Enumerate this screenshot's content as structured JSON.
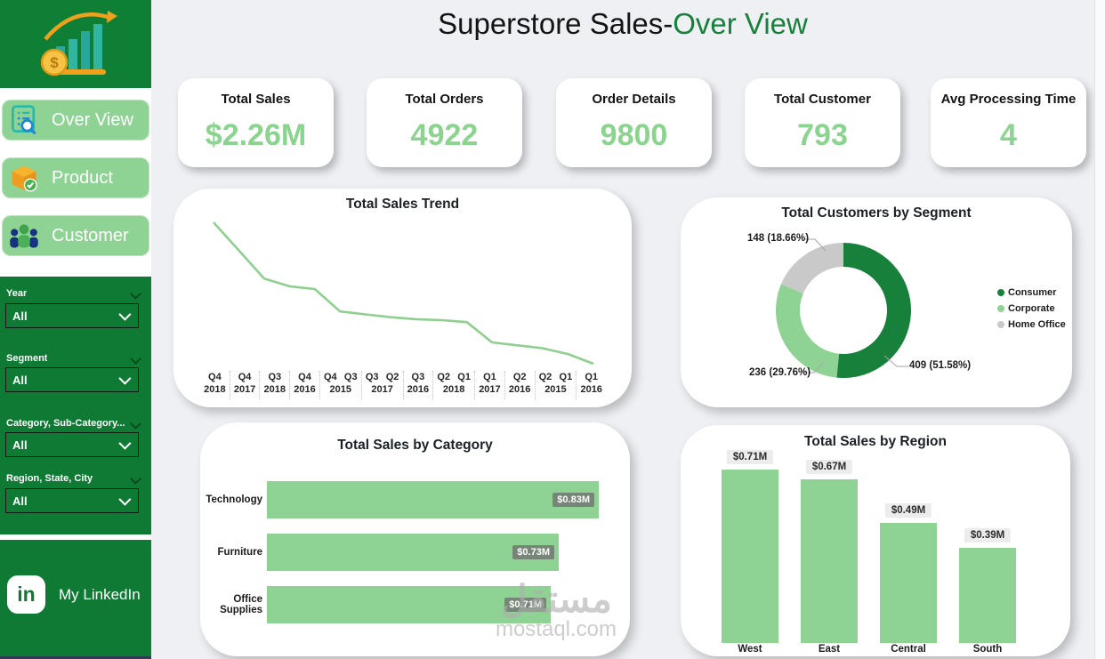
{
  "header": {
    "title_prefix": "Superstore Sales-",
    "title_highlight": "Over View"
  },
  "sidebar": {
    "nav": [
      {
        "label": "Over View"
      },
      {
        "label": "Product"
      },
      {
        "label": "Customer"
      }
    ],
    "filters": [
      {
        "label": "Year",
        "value": "All"
      },
      {
        "label": "Segment",
        "value": "All"
      },
      {
        "label": "Category, Sub-Category...",
        "value": "All"
      },
      {
        "label": "Region, State, City",
        "value": "All"
      }
    ],
    "linkedin": {
      "icon_text": "in",
      "label": "My LinkedIn"
    }
  },
  "kpis": [
    {
      "label": "Total Sales",
      "value": "$2.26M"
    },
    {
      "label": "Total Orders",
      "value": "4922"
    },
    {
      "label": "Order Details",
      "value": "9800"
    },
    {
      "label": "Total Customer",
      "value": "793"
    },
    {
      "label": "Avg Processing Time",
      "value": "4"
    }
  ],
  "watermark": {
    "arabic": "مستقل",
    "latin": "mostaql.com"
  },
  "colors": {
    "sidebar_green": "#0E7A33",
    "light_green": "#8FD394",
    "dark_green": "#17813B",
    "kpi_value_green": "#8BD48F",
    "trend_line": "#8FCF8F",
    "donut_gray": "#C9C9C9",
    "navy_strip": "#2E3B55",
    "background": "#EEF0F4"
  },
  "chart_data": [
    {
      "id": "total_sales_trend",
      "type": "line",
      "title": "Total Sales Trend",
      "x": [
        "Q4 2018",
        "Q4 2017",
        "Q3 2018",
        "Q4 2016",
        "Q4 2015",
        "Q3 2015",
        "Q3 2017",
        "Q2 2017",
        "Q3 2016",
        "Q2 2018",
        "Q1 2018",
        "Q1 2017",
        "Q2 2016",
        "Q2 2015",
        "Q1 2015",
        "Q1 2016"
      ],
      "values_musd": [
        0.222,
        0.193,
        0.164,
        0.156,
        0.153,
        0.13,
        0.127,
        0.124,
        0.122,
        0.121,
        0.119,
        0.098,
        0.095,
        0.092,
        0.086,
        0.076
      ],
      "axis_groups": [
        {
          "quarters": [
            "Q4"
          ],
          "year": "2018"
        },
        {
          "quarters": [
            "Q4"
          ],
          "year": "2017"
        },
        {
          "quarters": [
            "Q3"
          ],
          "year": "2018"
        },
        {
          "quarters": [
            "Q4"
          ],
          "year": "2016"
        },
        {
          "quarters": [
            "Q4",
            "Q3"
          ],
          "year": "2015"
        },
        {
          "quarters": [
            "Q3",
            "Q2"
          ],
          "year": "2017"
        },
        {
          "quarters": [
            "Q3"
          ],
          "year": "2016"
        },
        {
          "quarters": [
            "Q2",
            "Q1"
          ],
          "year": "2018"
        },
        {
          "quarters": [
            "Q1"
          ],
          "year": "2017"
        },
        {
          "quarters": [
            "Q2"
          ],
          "year": "2016"
        },
        {
          "quarters": [
            "Q2",
            "Q1"
          ],
          "year": "2015"
        },
        {
          "quarters": [
            "Q1"
          ],
          "year": "2016"
        }
      ]
    },
    {
      "id": "total_customers_by_segment",
      "type": "donut",
      "title": "Total Customers by Segment",
      "slices": [
        {
          "label": "Consumer",
          "value": 409,
          "pct": 51.58,
          "callout": "409 (51.58%)",
          "color": "#17813B"
        },
        {
          "label": "Corporate",
          "value": 236,
          "pct": 29.76,
          "callout": "236 (29.76%)",
          "color": "#8FD394"
        },
        {
          "label": "Home Office",
          "value": 148,
          "pct": 18.66,
          "callout": "148 (18.66%)",
          "color": "#C9C9C9"
        }
      ],
      "legend_position": "right"
    },
    {
      "id": "total_sales_by_category",
      "type": "bar",
      "title": "Total Sales by Category",
      "categories": [
        "Technology",
        "Furniture",
        "Office Supplies"
      ],
      "values_musd": [
        0.83,
        0.73,
        0.71
      ],
      "labels": [
        "$0.83M",
        "$0.73M",
        "$0.71M"
      ],
      "bar_color": "#8FD394"
    },
    {
      "id": "total_sales_by_region",
      "type": "column",
      "title": "Total Sales by Region",
      "categories": [
        "West",
        "East",
        "Central",
        "South"
      ],
      "values_musd": [
        0.71,
        0.67,
        0.49,
        0.39
      ],
      "labels": [
        "$0.71M",
        "$0.67M",
        "$0.49M",
        "$0.39M"
      ],
      "bar_color": "#8FD394"
    }
  ]
}
